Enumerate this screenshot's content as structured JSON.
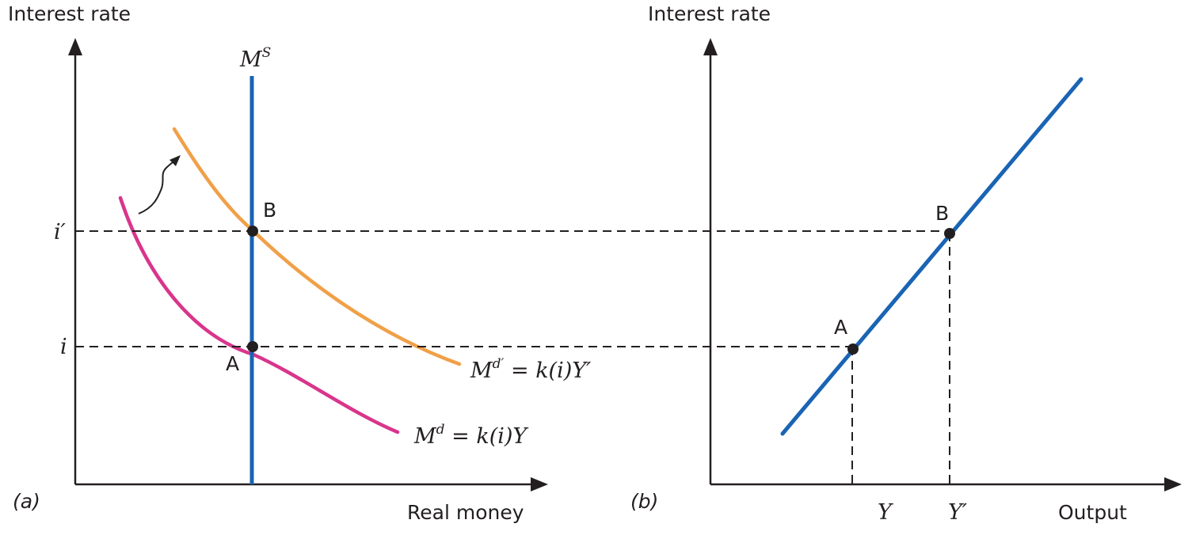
{
  "panel_a": {
    "label": "(a)",
    "y_axis_title": "Interest rate",
    "x_axis_title": "Real money",
    "tick_i": "i",
    "tick_i_prime": "i′",
    "point_a": "A",
    "point_b": "B",
    "supply_label": {
      "base": "M",
      "sup": "S"
    },
    "demand_label": {
      "base": "M",
      "sup": "d",
      "rest": " = k(i)Y"
    },
    "demand_prime_label": {
      "base": "M",
      "sup": "d′",
      "rest": " = k(i)Y′"
    },
    "colors": {
      "money_supply": "#1a64b4",
      "money_demand": "#d9358c",
      "money_demand_shifted": "#f0a048"
    }
  },
  "panel_b": {
    "label": "(b)",
    "y_axis_title": "Interest rate",
    "x_axis_title": "Output",
    "tick_y": "Y",
    "tick_y_prime": "Y′",
    "point_a": "A",
    "point_b": "B",
    "colors": {
      "lm_curve": "#1a64b4"
    }
  }
}
